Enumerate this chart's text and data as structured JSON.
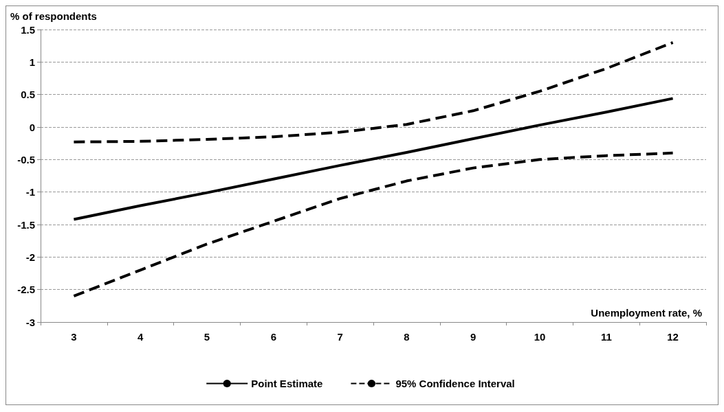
{
  "chart_data": {
    "type": "line",
    "ylabel": "% of respondents",
    "xlabel": "Unemployment rate, %",
    "categories": [
      "3",
      "4",
      "5",
      "6",
      "7",
      "8",
      "9",
      "10",
      "11",
      "12"
    ],
    "series": [
      {
        "name": "Point Estimate",
        "color": "#000000",
        "line_style": "solid",
        "values": [
          -1.42,
          -1.21,
          -1.01,
          -0.8,
          -0.59,
          -0.39,
          -0.18,
          0.03,
          0.23,
          0.44
        ]
      },
      {
        "name": "95% Confidence Interval",
        "color": "#000000",
        "line_style": "dashed",
        "values": [
          -0.23,
          -0.22,
          -0.19,
          -0.15,
          -0.08,
          0.04,
          0.25,
          0.55,
          0.9,
          1.3
        ]
      },
      {
        "color": "#000000",
        "line_style": "dashed",
        "values": [
          -2.6,
          -2.2,
          -1.8,
          -1.45,
          -1.1,
          -0.83,
          -0.63,
          -0.5,
          -0.44,
          -0.4
        ]
      }
    ],
    "ylim": [
      -3,
      1.5
    ],
    "yticks": [
      -3,
      -2.5,
      -2,
      -1.5,
      -1,
      -0.5,
      0,
      0.5,
      1,
      1.5
    ],
    "grid": "y",
    "legend": "bottom",
    "marker": "none"
  }
}
